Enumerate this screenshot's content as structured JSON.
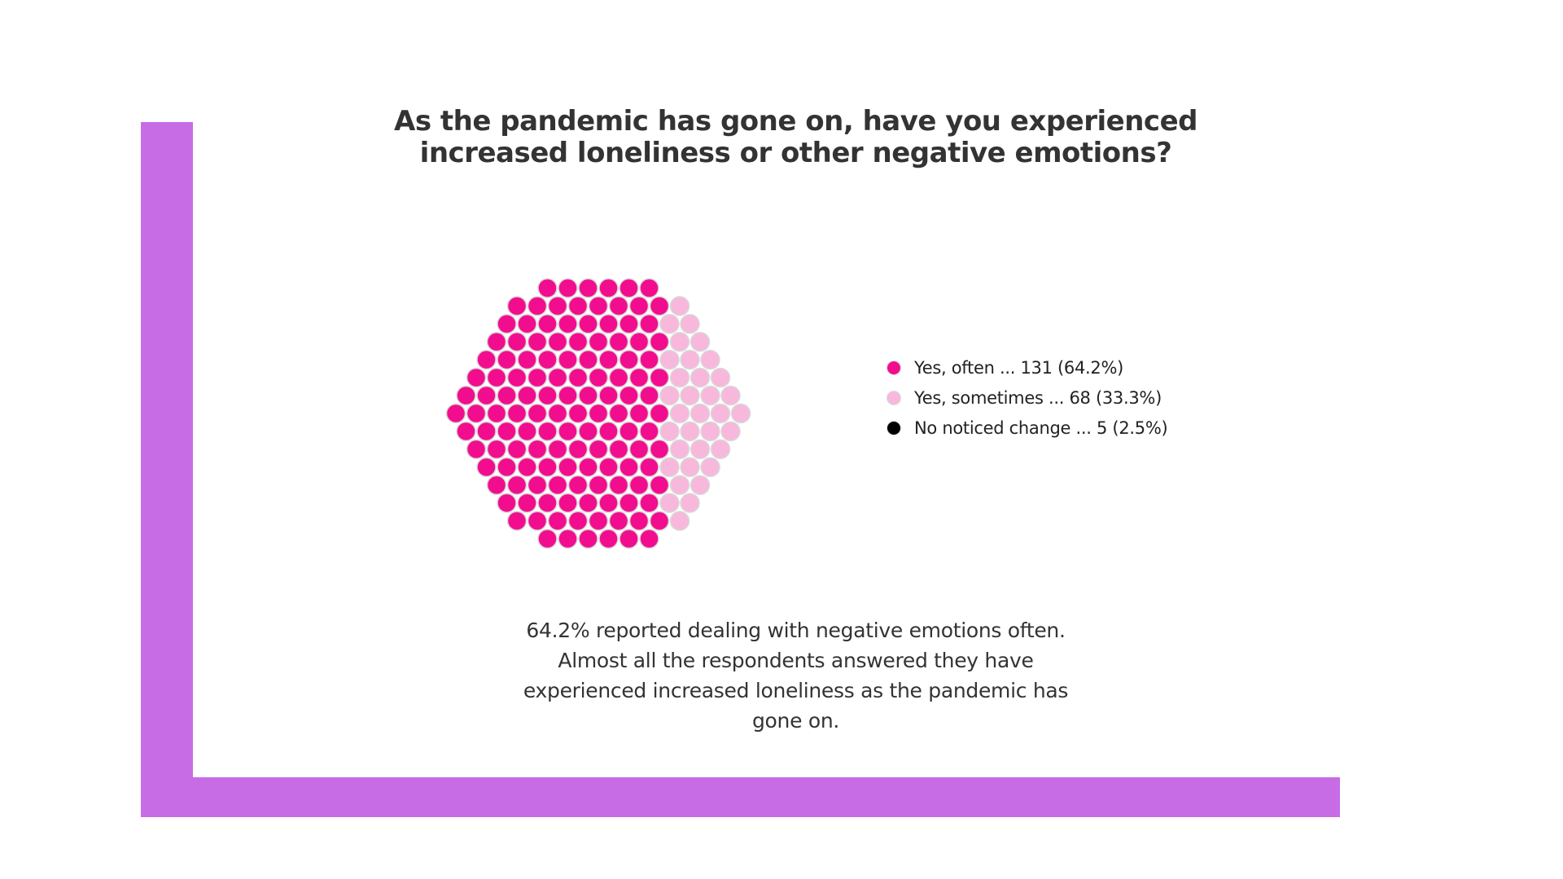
{
  "colors": {
    "frame": "#c86ce6"
  },
  "chart_data": {
    "type": "beeswarm",
    "title": "As the pandemic has gone on, have you experienced increased loneliness or other negative emotions?",
    "series": [
      {
        "name": "Yes, often",
        "count": 131,
        "percent": 64.2,
        "color": "#f20d8e",
        "label": "Yes, often ... 131 (64.2%)"
      },
      {
        "name": "Yes, sometimes",
        "count": 68,
        "percent": 33.3,
        "color": "#f7b8dc",
        "label": "Yes, sometimes ... 68 (33.3%)"
      },
      {
        "name": "No noticed change",
        "count": 5,
        "percent": 2.5,
        "color": "#000000",
        "label": "No noticed change ... 5 (2.5%)"
      }
    ],
    "total": 204,
    "legend_position": "right",
    "caption": "64.2% reported dealing with negative emotions often. Almost all the respondents answered they have experienced increased loneliness as the pandemic has gone on."
  }
}
